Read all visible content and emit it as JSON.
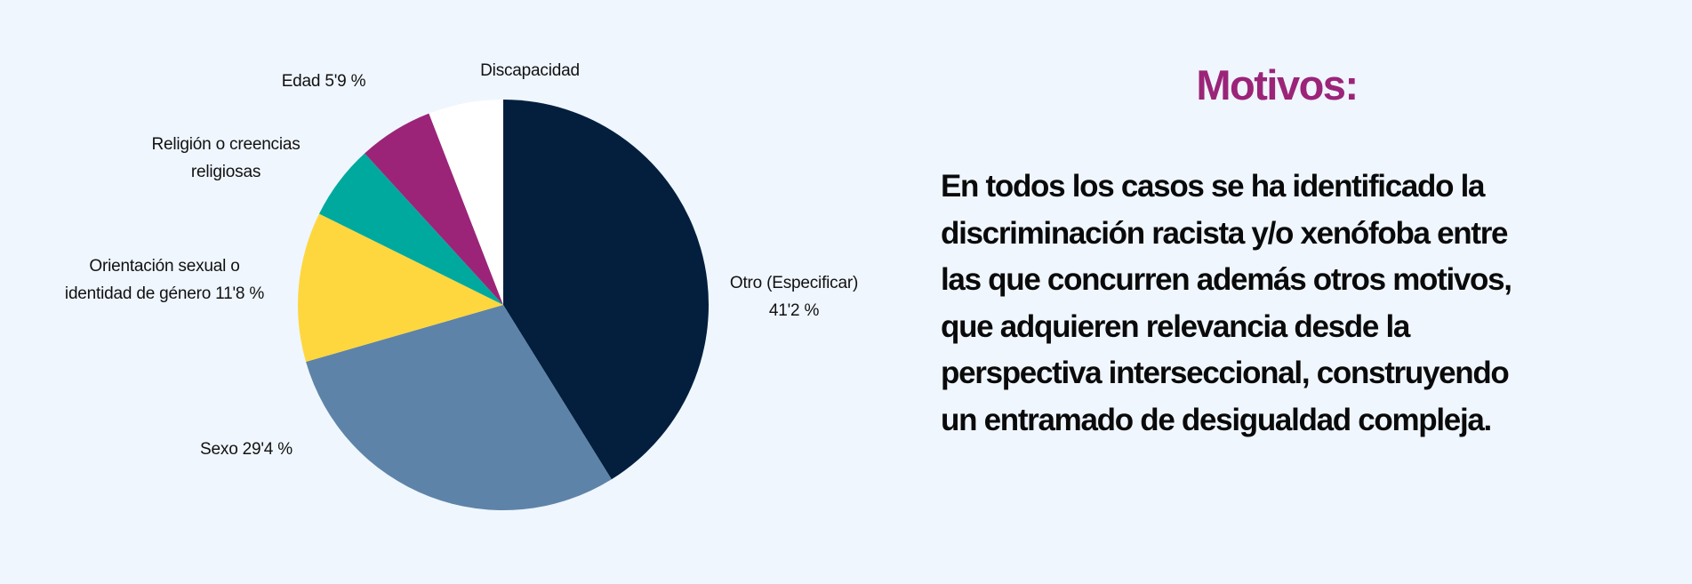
{
  "chart_data": {
    "type": "pie",
    "start": "12 o'clock, clockwise",
    "slices": [
      {
        "label": "Otro (Especificar)",
        "value": 41.2,
        "value_label": "41'2 %",
        "color": "#031f3d"
      },
      {
        "label": "Sexo",
        "value": 29.4,
        "value_label": "29'4 %",
        "color": "#5e83a8"
      },
      {
        "label": "Orientación sexual o identidad de género",
        "value": 11.8,
        "value_label": "11'8 %",
        "color": "#fed73f"
      },
      {
        "label": "Religión o creencias religiosas",
        "value": 5.9,
        "value_label": "",
        "color": "#00a99d"
      },
      {
        "label": "Edad",
        "value": 5.9,
        "value_label": "5'9 %",
        "color": "#9b2479"
      },
      {
        "label": "Discapacidad",
        "value": 5.9,
        "value_label": "",
        "color": "#ffffff"
      }
    ],
    "labels": {
      "otro": [
        "Otro (Especificar)",
        "41'2 %"
      ],
      "sexo": "Sexo 29'4 %",
      "orientacion": [
        "Orientación sexual o",
        "identidad de género 11'8 %"
      ],
      "religion": [
        "Religión o creencias",
        "religiosas"
      ],
      "edad": "Edad 5'9 %",
      "discapacidad": "Discapacidad"
    }
  },
  "side": {
    "title": "Motivos:",
    "title_color": "#9b2479",
    "lines": [
      "En todos los casos se ha identificado la",
      "discriminación racista y/o xenófoba entre",
      "las que concurren además otros motivos,",
      "que adquieren relevancia desde la",
      "perspectiva interseccional, construyendo",
      "un entramado de desigualdad compleja."
    ]
  }
}
